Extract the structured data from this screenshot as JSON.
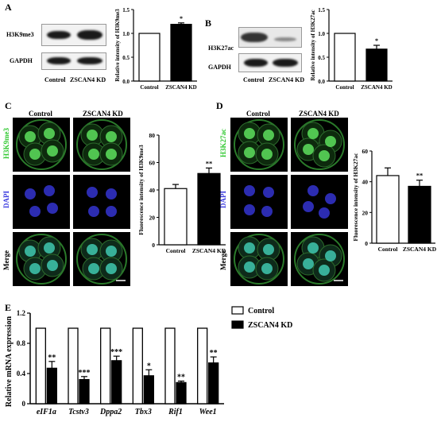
{
  "panels": {
    "A": {
      "letter": "A",
      "blot_labels": [
        "H3K9me3",
        "GAPDH"
      ],
      "lane_labels": [
        "Control",
        "ZSCAN4 KD"
      ]
    },
    "B": {
      "letter": "B",
      "blot_labels": [
        "H3K27ac",
        "GAPDH"
      ],
      "lane_labels": [
        "Control",
        "ZSCAN4 KD"
      ]
    },
    "C": {
      "letter": "C",
      "columns": [
        "Control",
        "ZSCAN4 KD"
      ],
      "rows": [
        "H3K9me3",
        "DAPI",
        "Merge"
      ]
    },
    "D": {
      "letter": "D",
      "columns": [
        "Control",
        "ZSCAN4 KD"
      ],
      "rows": [
        "H3K27ac",
        "DAPI",
        "Merge"
      ]
    },
    "E": {
      "letter": "E"
    }
  },
  "colors": {
    "green_channel": "#31c831",
    "blue_channel": "#3a3adf",
    "bar_black": "#000000"
  },
  "chart_data": [
    {
      "id": "A-bar",
      "type": "bar",
      "categories": [
        "Control",
        "ZSCAN4 KD"
      ],
      "values": [
        1.0,
        1.19
      ],
      "errors": [
        0,
        0.03
      ],
      "significance": [
        "",
        "*"
      ],
      "ylabel": "Relative intensity of H3K9me3",
      "ylim": [
        0,
        1.5
      ],
      "yticks": [
        "0.0",
        "0.5",
        "1.0",
        "1.5"
      ]
    },
    {
      "id": "B-bar",
      "type": "bar",
      "categories": [
        "Control",
        "ZSCAN4 KD"
      ],
      "values": [
        1.0,
        0.67
      ],
      "errors": [
        0,
        0.08
      ],
      "significance": [
        "",
        "*"
      ],
      "ylabel": "Relative intensity of H3K27ac",
      "ylim": [
        0,
        1.5
      ],
      "yticks": [
        "0.0",
        "0.5",
        "1.0",
        "1.5"
      ]
    },
    {
      "id": "C-bar",
      "type": "bar",
      "categories": [
        "Control",
        "ZSCAN4 KD"
      ],
      "values": [
        41,
        52
      ],
      "errors": [
        3,
        4
      ],
      "significance": [
        "",
        "**"
      ],
      "ylabel": "Fluorescence intensity of H3K9me3",
      "ylim": [
        0,
        80
      ],
      "yticks": [
        "0",
        "20",
        "40",
        "60",
        "80"
      ]
    },
    {
      "id": "D-bar",
      "type": "bar",
      "categories": [
        "Control",
        "ZSCAN4 KD"
      ],
      "values": [
        44,
        37
      ],
      "errors": [
        5,
        4
      ],
      "significance": [
        "",
        "**"
      ],
      "ylabel": "Fluorescence intensity of H3K27ac",
      "ylim": [
        0,
        60
      ],
      "yticks": [
        "0",
        "20",
        "40",
        "60"
      ]
    },
    {
      "id": "E-bar",
      "type": "bar",
      "categories": [
        "eIF1a",
        "Tcstv3",
        "Dppa2",
        "Tbx3",
        "Rif1",
        "Wee1"
      ],
      "series": [
        {
          "name": "Control",
          "values": [
            1.0,
            1.0,
            1.0,
            1.0,
            1.0,
            1.0
          ],
          "errors": [
            0,
            0,
            0,
            0,
            0,
            0
          ]
        },
        {
          "name": "ZSCAN4 KD",
          "values": [
            0.47,
            0.32,
            0.57,
            0.37,
            0.28,
            0.54
          ],
          "errors": [
            0.09,
            0.04,
            0.06,
            0.08,
            0.02,
            0.08
          ]
        }
      ],
      "significance": [
        "**",
        "***",
        "***",
        "*",
        "**",
        "**"
      ],
      "ylabel": "Relative mRNA expression",
      "ylim": [
        0,
        1.2
      ],
      "yticks": [
        "0",
        "0.4",
        "0.8",
        "1.2"
      ],
      "legend": "top-right"
    }
  ]
}
